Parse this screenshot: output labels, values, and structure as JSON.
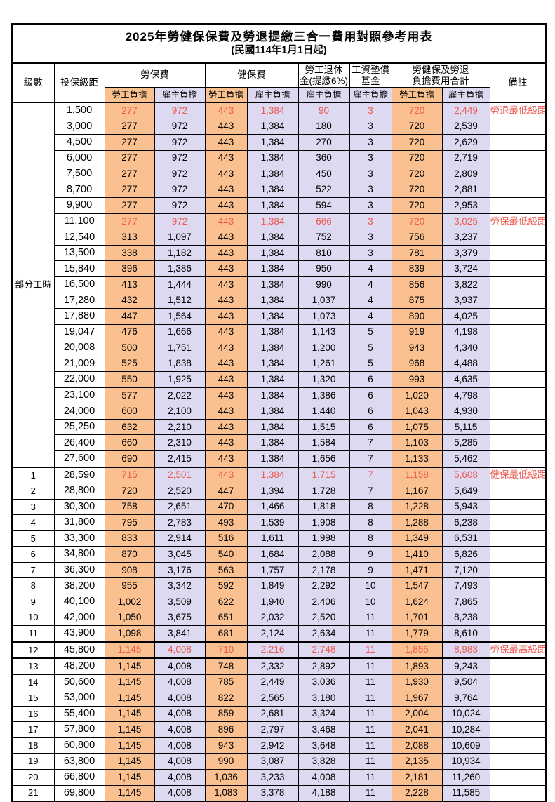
{
  "title": "2025年勞健保保費及勞退提繳三合一費用對照參考用表",
  "subtitle": "(民國114年1月1日起)",
  "colors": {
    "employee_fill": "#FAC090",
    "employer_fill": "#DCD9F0",
    "highlight_red": "#EE5A52",
    "border": "#000000"
  },
  "header": {
    "level": "級數",
    "bracket": "投保級距",
    "labor_insurance": "勞保費",
    "health_insurance": "健保費",
    "pension_line1": "勞工退休",
    "pension_line2": "金(提繳6%)",
    "wage_fund_line1": "工資墊償",
    "wage_fund_line2": "基金",
    "total_line1": "勞健保及勞退",
    "total_line2": "負擔費用合計",
    "remark": "備註",
    "employee_burden": "勞工負擔",
    "employer_burden": "雇主負擔"
  },
  "part_time_label": "部分工時",
  "part_time_rowspan": 23,
  "column_fills": [
    "o",
    "l",
    "o",
    "l",
    "l",
    "l",
    "o",
    "l"
  ],
  "rows": [
    {
      "level": "",
      "bracket": "1,500",
      "v": [
        "277",
        "972",
        "443",
        "1,384",
        "90",
        "3",
        "720",
        "2,449"
      ],
      "remark": "勞退最低級距",
      "red": true,
      "thick": false
    },
    {
      "level": "",
      "bracket": "3,000",
      "v": [
        "277",
        "972",
        "443",
        "1,384",
        "180",
        "3",
        "720",
        "2,539"
      ],
      "remark": "",
      "red": false,
      "thick": false
    },
    {
      "level": "",
      "bracket": "4,500",
      "v": [
        "277",
        "972",
        "443",
        "1,384",
        "270",
        "3",
        "720",
        "2,629"
      ],
      "remark": "",
      "red": false,
      "thick": false
    },
    {
      "level": "",
      "bracket": "6,000",
      "v": [
        "277",
        "972",
        "443",
        "1,384",
        "360",
        "3",
        "720",
        "2,719"
      ],
      "remark": "",
      "red": false,
      "thick": false
    },
    {
      "level": "",
      "bracket": "7,500",
      "v": [
        "277",
        "972",
        "443",
        "1,384",
        "450",
        "3",
        "720",
        "2,809"
      ],
      "remark": "",
      "red": false,
      "thick": false
    },
    {
      "level": "",
      "bracket": "8,700",
      "v": [
        "277",
        "972",
        "443",
        "1,384",
        "522",
        "3",
        "720",
        "2,881"
      ],
      "remark": "",
      "red": false,
      "thick": false
    },
    {
      "level": "",
      "bracket": "9,900",
      "v": [
        "277",
        "972",
        "443",
        "1,384",
        "594",
        "3",
        "720",
        "2,953"
      ],
      "remark": "",
      "red": false,
      "thick": false
    },
    {
      "level": "",
      "bracket": "11,100",
      "v": [
        "277",
        "972",
        "443",
        "1,384",
        "666",
        "3",
        "720",
        "3,025"
      ],
      "remark": "勞保最低級距",
      "red": true,
      "thick": false
    },
    {
      "level": "",
      "bracket": "12,540",
      "v": [
        "313",
        "1,097",
        "443",
        "1,384",
        "752",
        "3",
        "756",
        "3,237"
      ],
      "remark": "",
      "red": false,
      "thick": false
    },
    {
      "level": "",
      "bracket": "13,500",
      "v": [
        "338",
        "1,182",
        "443",
        "1,384",
        "810",
        "3",
        "781",
        "3,379"
      ],
      "remark": "",
      "red": false,
      "thick": false
    },
    {
      "level": "",
      "bracket": "15,840",
      "v": [
        "396",
        "1,386",
        "443",
        "1,384",
        "950",
        "4",
        "839",
        "3,724"
      ],
      "remark": "",
      "red": false,
      "thick": false
    },
    {
      "level": "",
      "bracket": "16,500",
      "v": [
        "413",
        "1,444",
        "443",
        "1,384",
        "990",
        "4",
        "856",
        "3,822"
      ],
      "remark": "",
      "red": false,
      "thick": false
    },
    {
      "level": "",
      "bracket": "17,280",
      "v": [
        "432",
        "1,512",
        "443",
        "1,384",
        "1,037",
        "4",
        "875",
        "3,937"
      ],
      "remark": "",
      "red": false,
      "thick": false
    },
    {
      "level": "",
      "bracket": "17,880",
      "v": [
        "447",
        "1,564",
        "443",
        "1,384",
        "1,073",
        "4",
        "890",
        "4,025"
      ],
      "remark": "",
      "red": false,
      "thick": false
    },
    {
      "level": "",
      "bracket": "19,047",
      "v": [
        "476",
        "1,666",
        "443",
        "1,384",
        "1,143",
        "5",
        "919",
        "4,198"
      ],
      "remark": "",
      "red": false,
      "thick": false
    },
    {
      "level": "",
      "bracket": "20,008",
      "v": [
        "500",
        "1,751",
        "443",
        "1,384",
        "1,200",
        "5",
        "943",
        "4,340"
      ],
      "remark": "",
      "red": false,
      "thick": false
    },
    {
      "level": "",
      "bracket": "21,009",
      "v": [
        "525",
        "1,838",
        "443",
        "1,384",
        "1,261",
        "5",
        "968",
        "4,488"
      ],
      "remark": "",
      "red": false,
      "thick": false
    },
    {
      "level": "",
      "bracket": "22,000",
      "v": [
        "550",
        "1,925",
        "443",
        "1,384",
        "1,320",
        "6",
        "993",
        "4,635"
      ],
      "remark": "",
      "red": false,
      "thick": false
    },
    {
      "level": "",
      "bracket": "23,100",
      "v": [
        "577",
        "2,022",
        "443",
        "1,384",
        "1,386",
        "6",
        "1,020",
        "4,798"
      ],
      "remark": "",
      "red": false,
      "thick": false
    },
    {
      "level": "",
      "bracket": "24,000",
      "v": [
        "600",
        "2,100",
        "443",
        "1,384",
        "1,440",
        "6",
        "1,043",
        "4,930"
      ],
      "remark": "",
      "red": false,
      "thick": false
    },
    {
      "level": "",
      "bracket": "25,250",
      "v": [
        "632",
        "2,210",
        "443",
        "1,384",
        "1,515",
        "6",
        "1,075",
        "5,115"
      ],
      "remark": "",
      "red": false,
      "thick": false
    },
    {
      "level": "",
      "bracket": "26,400",
      "v": [
        "660",
        "2,310",
        "443",
        "1,384",
        "1,584",
        "7",
        "1,103",
        "5,285"
      ],
      "remark": "",
      "red": false,
      "thick": false
    },
    {
      "level": "",
      "bracket": "27,600",
      "v": [
        "690",
        "2,415",
        "443",
        "1,384",
        "1,656",
        "7",
        "1,133",
        "5,462"
      ],
      "remark": "",
      "red": false,
      "thick": false
    },
    {
      "level": "1",
      "bracket": "28,590",
      "v": [
        "715",
        "2,501",
        "443",
        "1,384",
        "1,715",
        "7",
        "1,158",
        "5,608"
      ],
      "remark": "健保最低級距",
      "red": true,
      "thick": true
    },
    {
      "level": "2",
      "bracket": "28,800",
      "v": [
        "720",
        "2,520",
        "447",
        "1,394",
        "1,728",
        "7",
        "1,167",
        "5,649"
      ],
      "remark": "",
      "red": false,
      "thick": false
    },
    {
      "level": "3",
      "bracket": "30,300",
      "v": [
        "758",
        "2,651",
        "470",
        "1,466",
        "1,818",
        "8",
        "1,228",
        "5,943"
      ],
      "remark": "",
      "red": false,
      "thick": false
    },
    {
      "level": "4",
      "bracket": "31,800",
      "v": [
        "795",
        "2,783",
        "493",
        "1,539",
        "1,908",
        "8",
        "1,288",
        "6,238"
      ],
      "remark": "",
      "red": false,
      "thick": false
    },
    {
      "level": "5",
      "bracket": "33,300",
      "v": [
        "833",
        "2,914",
        "516",
        "1,611",
        "1,998",
        "8",
        "1,349",
        "6,531"
      ],
      "remark": "",
      "red": false,
      "thick": false
    },
    {
      "level": "6",
      "bracket": "34,800",
      "v": [
        "870",
        "3,045",
        "540",
        "1,684",
        "2,088",
        "9",
        "1,410",
        "6,826"
      ],
      "remark": "",
      "red": false,
      "thick": false
    },
    {
      "level": "7",
      "bracket": "36,300",
      "v": [
        "908",
        "3,176",
        "563",
        "1,757",
        "2,178",
        "9",
        "1,471",
        "7,120"
      ],
      "remark": "",
      "red": false,
      "thick": false
    },
    {
      "level": "8",
      "bracket": "38,200",
      "v": [
        "955",
        "3,342",
        "592",
        "1,849",
        "2,292",
        "10",
        "1,547",
        "7,493"
      ],
      "remark": "",
      "red": false,
      "thick": false
    },
    {
      "level": "9",
      "bracket": "40,100",
      "v": [
        "1,002",
        "3,509",
        "622",
        "1,940",
        "2,406",
        "10",
        "1,624",
        "7,865"
      ],
      "remark": "",
      "red": false,
      "thick": false
    },
    {
      "level": "10",
      "bracket": "42,000",
      "v": [
        "1,050",
        "3,675",
        "651",
        "2,032",
        "2,520",
        "11",
        "1,701",
        "8,238"
      ],
      "remark": "",
      "red": false,
      "thick": false
    },
    {
      "level": "11",
      "bracket": "43,900",
      "v": [
        "1,098",
        "3,841",
        "681",
        "2,124",
        "2,634",
        "11",
        "1,779",
        "8,610"
      ],
      "remark": "",
      "red": false,
      "thick": false
    },
    {
      "level": "12",
      "bracket": "45,800",
      "v": [
        "1,145",
        "4,008",
        "710",
        "2,216",
        "2,748",
        "11",
        "1,855",
        "8,983"
      ],
      "remark": "勞保最高級距",
      "red": true,
      "thick": true
    },
    {
      "level": "13",
      "bracket": "48,200",
      "v": [
        "1,145",
        "4,008",
        "748",
        "2,332",
        "2,892",
        "11",
        "1,893",
        "9,243"
      ],
      "remark": "",
      "red": false,
      "thick": true
    },
    {
      "level": "14",
      "bracket": "50,600",
      "v": [
        "1,145",
        "4,008",
        "785",
        "2,449",
        "3,036",
        "11",
        "1,930",
        "9,504"
      ],
      "remark": "",
      "red": false,
      "thick": false
    },
    {
      "level": "15",
      "bracket": "53,000",
      "v": [
        "1,145",
        "4,008",
        "822",
        "2,565",
        "3,180",
        "11",
        "1,967",
        "9,764"
      ],
      "remark": "",
      "red": false,
      "thick": false
    },
    {
      "level": "16",
      "bracket": "55,400",
      "v": [
        "1,145",
        "4,008",
        "859",
        "2,681",
        "3,324",
        "11",
        "2,004",
        "10,024"
      ],
      "remark": "",
      "red": false,
      "thick": false
    },
    {
      "level": "17",
      "bracket": "57,800",
      "v": [
        "1,145",
        "4,008",
        "896",
        "2,797",
        "3,468",
        "11",
        "2,041",
        "10,284"
      ],
      "remark": "",
      "red": false,
      "thick": false
    },
    {
      "level": "18",
      "bracket": "60,800",
      "v": [
        "1,145",
        "4,008",
        "943",
        "2,942",
        "3,648",
        "11",
        "2,088",
        "10,609"
      ],
      "remark": "",
      "red": false,
      "thick": false
    },
    {
      "level": "19",
      "bracket": "63,800",
      "v": [
        "1,145",
        "4,008",
        "990",
        "3,087",
        "3,828",
        "11",
        "2,135",
        "10,934"
      ],
      "remark": "",
      "red": false,
      "thick": false
    },
    {
      "level": "20",
      "bracket": "66,800",
      "v": [
        "1,145",
        "4,008",
        "1,036",
        "3,233",
        "4,008",
        "11",
        "2,181",
        "11,260"
      ],
      "remark": "",
      "red": false,
      "thick": false
    },
    {
      "level": "21",
      "bracket": "69,800",
      "v": [
        "1,145",
        "4,008",
        "1,083",
        "3,378",
        "4,188",
        "11",
        "2,228",
        "11,585"
      ],
      "remark": "",
      "red": false,
      "thick": false
    }
  ]
}
